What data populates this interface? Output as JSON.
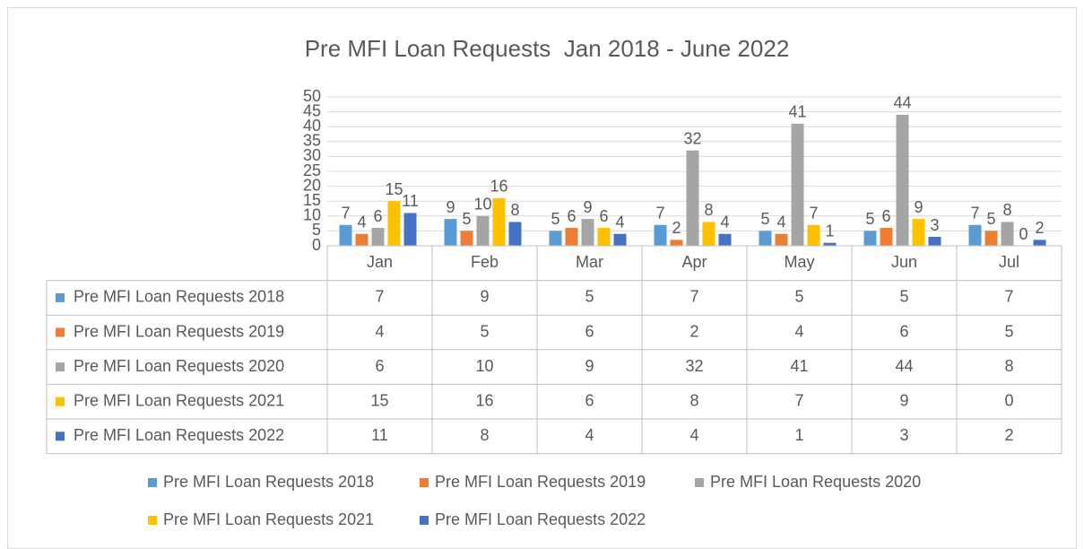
{
  "chart_data": {
    "type": "bar",
    "title": "Pre MFI Loan Requests  Jan 2018 - June 2022",
    "categories": [
      "Jan",
      "Feb",
      "Mar",
      "Apr",
      "May",
      "Jun",
      "Jul"
    ],
    "series": [
      {
        "name": "Pre MFI Loan Requests 2018",
        "color": "#5b9bd5",
        "values": [
          7,
          9,
          5,
          7,
          5,
          5,
          7
        ]
      },
      {
        "name": "Pre MFI Loan Requests 2019",
        "color": "#ed7d31",
        "values": [
          4,
          5,
          6,
          2,
          4,
          6,
          5
        ]
      },
      {
        "name": "Pre MFI Loan Requests 2020",
        "color": "#a5a5a5",
        "values": [
          6,
          10,
          9,
          32,
          41,
          44,
          8
        ]
      },
      {
        "name": "Pre MFI Loan Requests 2021",
        "color": "#ffc000",
        "values": [
          15,
          16,
          6,
          8,
          7,
          9,
          0
        ]
      },
      {
        "name": "Pre MFI Loan Requests 2022",
        "color": "#4472c4",
        "values": [
          11,
          8,
          4,
          4,
          1,
          3,
          2
        ]
      }
    ],
    "ylim": [
      0,
      50
    ],
    "yticks": [
      0,
      5,
      10,
      15,
      20,
      25,
      30,
      35,
      40,
      45,
      50
    ],
    "grid": true,
    "data_table": true,
    "legend": "bottom"
  }
}
